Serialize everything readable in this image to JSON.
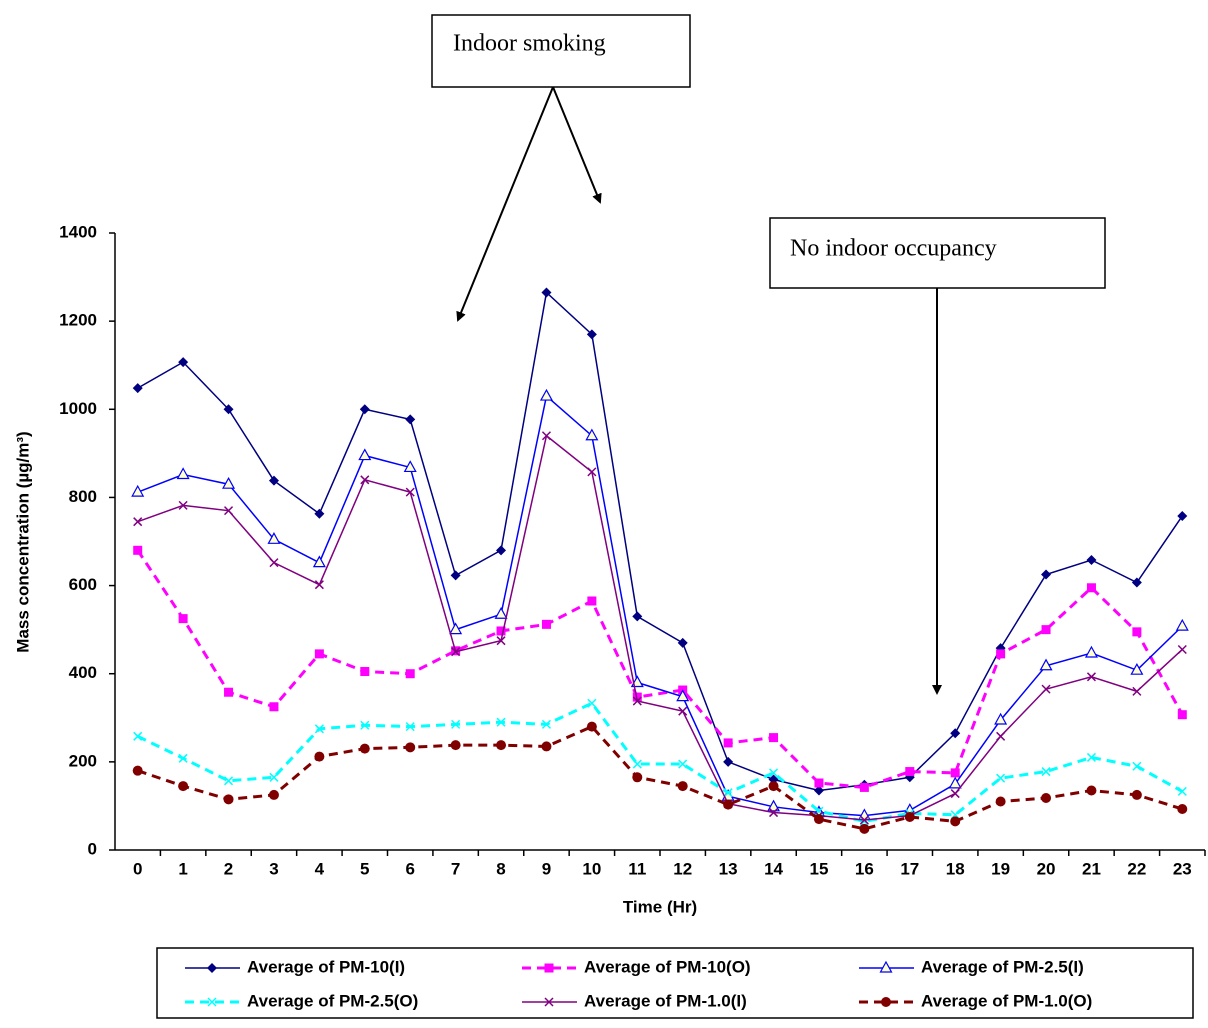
{
  "chart_data": {
    "type": "line",
    "y_label": "Mass concentration (µg/m³)",
    "x_label": "Time (Hr)",
    "annotations": [
      "Indoor smoking",
      "No indoor occupancy"
    ],
    "categories": [
      "0",
      "1",
      "2",
      "3",
      "4",
      "5",
      "6",
      "7",
      "8",
      "9",
      "10",
      "11",
      "12",
      "13",
      "14",
      "15",
      "16",
      "17",
      "18",
      "19",
      "20",
      "21",
      "22",
      "23"
    ],
    "ylim": [
      0,
      1400
    ],
    "yticks": [
      0,
      200,
      400,
      600,
      800,
      1000,
      1200,
      1400
    ],
    "series": [
      {
        "name": "Average of PM-10(I)",
        "color": "#000080",
        "marker": "diamond",
        "dashed": false,
        "values": [
          1048,
          1107,
          1000,
          838,
          763,
          1000,
          977,
          623,
          680,
          1265,
          1170,
          530,
          470,
          200,
          160,
          135,
          148,
          165,
          265,
          458,
          625,
          658,
          607,
          758
        ]
      },
      {
        "name": "Average of PM-10(O)",
        "color": "#FF00FF",
        "marker": "square",
        "dashed": true,
        "values": [
          680,
          525,
          358,
          325,
          445,
          405,
          400,
          452,
          497,
          512,
          565,
          347,
          363,
          243,
          255,
          152,
          142,
          178,
          175,
          445,
          500,
          595,
          495,
          307
        ]
      },
      {
        "name": "Average of PM-2.5(I)",
        "color": "#0000FF",
        "marker": "triangle",
        "dashed": false,
        "values": [
          812,
          852,
          830,
          705,
          652,
          895,
          868,
          500,
          535,
          1030,
          940,
          380,
          348,
          122,
          98,
          85,
          78,
          90,
          150,
          295,
          418,
          447,
          408,
          508
        ]
      },
      {
        "name": "Average of PM-2.5(O)",
        "color": "#00FFFF",
        "marker": "x",
        "dashed": true,
        "values": [
          258,
          208,
          157,
          165,
          275,
          283,
          280,
          285,
          290,
          285,
          333,
          195,
          195,
          130,
          175,
          88,
          65,
          83,
          80,
          163,
          178,
          210,
          190,
          133
        ]
      },
      {
        "name": "Average of PM-1.0(I)",
        "color": "#800080",
        "marker": "x",
        "dashed": false,
        "values": [
          745,
          782,
          770,
          652,
          602,
          840,
          812,
          450,
          475,
          940,
          858,
          338,
          315,
          105,
          85,
          78,
          68,
          78,
          128,
          258,
          365,
          393,
          360,
          455
        ]
      },
      {
        "name": "Average of PM-1.0(O)",
        "color": "#800000",
        "marker": "circle",
        "dashed": true,
        "values": [
          180,
          145,
          115,
          125,
          212,
          230,
          233,
          238,
          238,
          235,
          280,
          165,
          145,
          103,
          145,
          70,
          48,
          75,
          65,
          110,
          118,
          135,
          125,
          93
        ]
      }
    ]
  }
}
